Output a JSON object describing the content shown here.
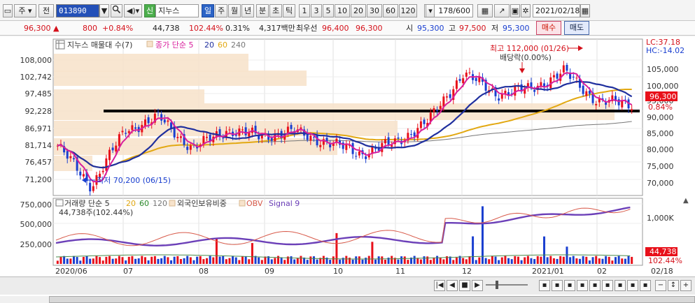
{
  "toolbar": {
    "type_button": "주",
    "prev_button": "전",
    "stock_code": "013890",
    "dropdown_arrow": "▼",
    "search_icon": "search-icon",
    "speaker_icon": "speaker-icon",
    "credit_badge": "신",
    "stock_name": "지누스",
    "periods": [
      "일",
      "주",
      "월",
      "년",
      "분",
      "초",
      "틱"
    ],
    "selected_period": "일",
    "intervals": [
      "1",
      "3",
      "5",
      "10",
      "20",
      "30",
      "60",
      "120"
    ],
    "count_value": "178",
    "count_total": "/600",
    "date_value": "2021/02/18"
  },
  "quote": {
    "price": "96,300",
    "change_arrow": "▲",
    "change": "800",
    "change_pct": "+0.84%",
    "volume": "44,738",
    "volume_pct": "102.44%",
    "turnover_pct": "0.31%",
    "amount": "4,317백만",
    "best_ask_label": "최우선",
    "best_ask": "96,400",
    "best_bid": "96,300",
    "open_label": "시",
    "open": "95,300",
    "high_label": "고",
    "high": "97,500",
    "low_label": "저",
    "low": "95,300",
    "buy_button": "매수",
    "sell_button": "매도"
  },
  "price_panel": {
    "legend_title": "지누스 매물대 수(7)",
    "legend_ma_label": "종가 단순 5",
    "legend_ma_periods": [
      "20",
      "60",
      "240"
    ],
    "y_ticks_left": [
      "108,000",
      "102,742",
      "97,485",
      "92,228",
      "86,971",
      "81,714",
      "76,457",
      "71,200"
    ],
    "y_ticks_right": [
      "105,000",
      "100,000",
      "95,000",
      "90,000",
      "85,000",
      "80,000",
      "75,000",
      "70,000"
    ],
    "current_price_tag": "96,300",
    "current_pct_tag": "0.84%",
    "lc_label": "LC:37.18",
    "hc_label": "HC:-14.02",
    "high_annotation": "최고 112,000 (01/26)",
    "dividend_annotation": "배당락(0.00%)",
    "low_annotation": "최저 70,200 (06/15)"
  },
  "volume_panel": {
    "legend_volume": "거래량 단순 5",
    "legend_ma_periods": [
      "20",
      "60",
      "120"
    ],
    "legend_foreign": "외국인보유비중",
    "legend_obv": "OBV",
    "legend_signal": "Signal 9",
    "volume_readout": "44,738주(102.44%)",
    "y_ticks_left": [
      "750,000",
      "500,000",
      "250,000"
    ],
    "y_tick_right": "1,000K",
    "volume_tag": "44,738",
    "volume_pct_tag": "102.44%"
  },
  "x_axis": {
    "labels": [
      "2020/06",
      "07",
      "08",
      "09",
      "10",
      "11",
      "12",
      "2021/01",
      "02"
    ],
    "right_label": "02/18"
  },
  "colors": {
    "up": "#e8101a",
    "down": "#1a3fd0",
    "ma5": "#d81e9c",
    "ma20": "#1f2f9e",
    "ma60": "#e2a812",
    "ma240": "#777777",
    "volume_profile": "#f7e3cc",
    "support_line": "#000000"
  },
  "chart_data": {
    "type": "candlestick",
    "price_range": [
      68500,
      112000
    ],
    "close_series_sample": [
      {
        "x": "2020/06",
        "y": 83000
      },
      {
        "x": "2020/06/15",
        "y": 70200
      },
      {
        "x": "2020/07",
        "y": 88000
      },
      {
        "x": "2020/07/20",
        "y": 92000
      },
      {
        "x": "2020/08",
        "y": 82000
      },
      {
        "x": "2020/08/20",
        "y": 88000
      },
      {
        "x": "2020/09",
        "y": 86000
      },
      {
        "x": "2020/09/20",
        "y": 87500
      },
      {
        "x": "2020/10",
        "y": 84000
      },
      {
        "x": "2020/10/20",
        "y": 80500
      },
      {
        "x": "2020/11",
        "y": 84000
      },
      {
        "x": "2020/11/20",
        "y": 91000
      },
      {
        "x": "2020/12",
        "y": 106000
      },
      {
        "x": "2020/12/20",
        "y": 99500
      },
      {
        "x": "2021/01",
        "y": 101000
      },
      {
        "x": "2021/01/26",
        "y": 106500
      },
      {
        "x": "2021/02",
        "y": 97000
      },
      {
        "x": "2021/02/18",
        "y": 96300
      }
    ],
    "volume_max": 750000
  }
}
